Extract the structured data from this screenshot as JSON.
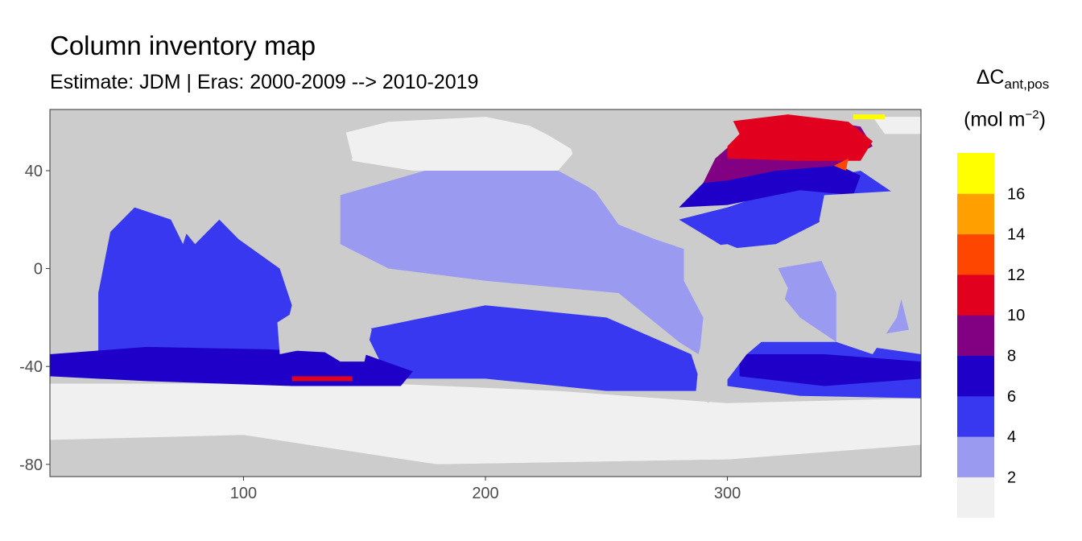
{
  "chart_data": {
    "type": "heatmap",
    "title": "Column inventory map",
    "subtitle": "Estimate: JDM  | Eras: 2000-2009 --> 2010-2019",
    "xlim": [
      20,
      380
    ],
    "ylim": [
      -85,
      65
    ],
    "x_ticks": [
      100,
      200,
      300
    ],
    "y_ticks": [
      40,
      0,
      -40,
      -80
    ],
    "grid": false,
    "land_color": "#cccccc",
    "legend": {
      "title_main": "ΔC",
      "title_sub": "ant,pos",
      "unit_prefix": "(mol m",
      "unit_sup": "−2",
      "unit_suffix": ")",
      "placement": "right",
      "bins": [
        {
          "color": "#f0f0f0"
        },
        {
          "color": "#9a9af0"
        },
        {
          "color": "#3838f0"
        },
        {
          "color": "#1e00c8"
        },
        {
          "color": "#820082"
        },
        {
          "color": "#e1001e"
        },
        {
          "color": "#ff4600"
        },
        {
          "color": "#ffa000"
        },
        {
          "color": "#ffff00"
        }
      ],
      "labels": [
        "2",
        "4",
        "6",
        "8",
        "10",
        "12",
        "14",
        "16"
      ]
    },
    "regions": [
      {
        "name": "southern-ice",
        "bin": 0,
        "polygon": [
          [
            20,
            -47
          ],
          [
            160,
            -47
          ],
          [
            230,
            -50
          ],
          [
            300,
            -55
          ],
          [
            380,
            -53
          ],
          [
            380,
            -80
          ],
          [
            300,
            -78
          ],
          [
            180,
            -80
          ],
          [
            100,
            -70
          ],
          [
            20,
            -70
          ]
        ]
      },
      {
        "name": "north-pacific",
        "bin": 0,
        "polygon": [
          [
            140,
            55
          ],
          [
            160,
            60
          ],
          [
            200,
            62
          ],
          [
            220,
            58
          ],
          [
            237,
            48
          ],
          [
            230,
            40
          ],
          [
            210,
            40
          ],
          [
            170,
            40
          ],
          [
            145,
            44
          ]
        ]
      },
      {
        "name": "arctic-sea",
        "bin": 0,
        "polygon": [
          [
            360,
            62
          ],
          [
            380,
            62
          ],
          [
            380,
            55
          ],
          [
            365,
            55
          ]
        ]
      },
      {
        "name": "pacific-central",
        "bin": 1,
        "polygon": [
          [
            140,
            30
          ],
          [
            175,
            40
          ],
          [
            230,
            40
          ],
          [
            245,
            32
          ],
          [
            255,
            18
          ],
          [
            270,
            12
          ],
          [
            282,
            8
          ],
          [
            290,
            -5
          ],
          [
            292,
            -20
          ],
          [
            288,
            -35
          ],
          [
            280,
            -30
          ],
          [
            255,
            -10
          ],
          [
            200,
            -5
          ],
          [
            160,
            0
          ],
          [
            140,
            10
          ]
        ]
      },
      {
        "name": "south-atlantic-light",
        "bin": 1,
        "polygon": [
          [
            320,
            0
          ],
          [
            350,
            5
          ],
          [
            370,
            -5
          ],
          [
            375,
            -25
          ],
          [
            345,
            -30
          ],
          [
            330,
            -20
          ],
          [
            320,
            -8
          ]
        ]
      },
      {
        "name": "indian-ocean",
        "bin": 2,
        "polygon": [
          [
            40,
            -10
          ],
          [
            45,
            15
          ],
          [
            55,
            25
          ],
          [
            70,
            22
          ],
          [
            80,
            10
          ],
          [
            90,
            20
          ],
          [
            98,
            12
          ],
          [
            115,
            0
          ],
          [
            120,
            -15
          ],
          [
            115,
            -35
          ],
          [
            40,
            -35
          ]
        ]
      },
      {
        "name": "south-pacific",
        "bin": 2,
        "polygon": [
          [
            150,
            -25
          ],
          [
            200,
            -15
          ],
          [
            250,
            -20
          ],
          [
            285,
            -35
          ],
          [
            290,
            -50
          ],
          [
            250,
            -50
          ],
          [
            200,
            -45
          ],
          [
            160,
            -45
          ]
        ]
      },
      {
        "name": "north-atlantic-outer",
        "bin": 2,
        "polygon": [
          [
            280,
            20
          ],
          [
            300,
            25
          ],
          [
            330,
            35
          ],
          [
            355,
            40
          ],
          [
            370,
            30
          ],
          [
            340,
            20
          ],
          [
            320,
            10
          ],
          [
            300,
            8
          ]
        ]
      },
      {
        "name": "south-atlantic",
        "bin": 2,
        "polygon": [
          [
            300,
            -30
          ],
          [
            345,
            -30
          ],
          [
            380,
            -35
          ],
          [
            380,
            -53
          ],
          [
            330,
            -52
          ],
          [
            300,
            -48
          ]
        ]
      },
      {
        "name": "southern-ocean-band",
        "bin": 3,
        "polygon": [
          [
            20,
            -35
          ],
          [
            60,
            -32
          ],
          [
            110,
            -33
          ],
          [
            150,
            -35
          ],
          [
            170,
            -42
          ],
          [
            165,
            -48
          ],
          [
            120,
            -48
          ],
          [
            60,
            -46
          ],
          [
            20,
            -44
          ]
        ]
      },
      {
        "name": "south-atlantic-band",
        "bin": 3,
        "polygon": [
          [
            305,
            -35
          ],
          [
            340,
            -35
          ],
          [
            380,
            -38
          ],
          [
            380,
            -45
          ],
          [
            340,
            -48
          ],
          [
            305,
            -44
          ]
        ]
      },
      {
        "name": "north-atlantic-mid",
        "bin": 3,
        "polygon": [
          [
            280,
            25
          ],
          [
            290,
            35
          ],
          [
            310,
            43
          ],
          [
            340,
            45
          ],
          [
            355,
            38
          ],
          [
            352,
            30
          ],
          [
            330,
            32
          ],
          [
            300,
            26
          ]
        ]
      },
      {
        "name": "north-atlantic-core",
        "bin": 4,
        "polygon": [
          [
            290,
            35
          ],
          [
            295,
            45
          ],
          [
            310,
            58
          ],
          [
            330,
            62
          ],
          [
            355,
            58
          ],
          [
            360,
            50
          ],
          [
            345,
            42
          ],
          [
            320,
            40
          ],
          [
            300,
            36
          ]
        ]
      },
      {
        "name": "north-atlantic-high",
        "bin": 5,
        "polygon": [
          [
            300,
            45
          ],
          [
            300,
            60
          ],
          [
            325,
            63
          ],
          [
            350,
            60
          ],
          [
            360,
            52
          ],
          [
            355,
            44
          ],
          [
            330,
            44
          ]
        ]
      },
      {
        "name": "tasman-red",
        "bin": 5,
        "polygon": [
          [
            120,
            -44
          ],
          [
            145,
            -44
          ],
          [
            145,
            -46
          ],
          [
            120,
            -46
          ]
        ]
      },
      {
        "name": "north-atlantic-orange",
        "bin": 6,
        "polygon": [
          [
            344,
            42
          ],
          [
            350,
            45
          ],
          [
            349,
            40
          ]
        ]
      },
      {
        "name": "arctic-yellow",
        "bin": 8,
        "polygon": [
          [
            352,
            63
          ],
          [
            365,
            63
          ],
          [
            365,
            61
          ],
          [
            352,
            61
          ]
        ]
      }
    ],
    "land": [
      {
        "name": "north-america",
        "polygon": [
          [
            190,
            65
          ],
          [
            300,
            65
          ],
          [
            305,
            55
          ],
          [
            295,
            45
          ],
          [
            283,
            35
          ],
          [
            278,
            27
          ],
          [
            270,
            20
          ],
          [
            262,
            18
          ],
          [
            255,
            25
          ],
          [
            240,
            35
          ],
          [
            235,
            50
          ],
          [
            215,
            60
          ]
        ]
      },
      {
        "name": "south-america",
        "polygon": [
          [
            282,
            8
          ],
          [
            300,
            10
          ],
          [
            320,
            2
          ],
          [
            325,
            -8
          ],
          [
            320,
            -25
          ],
          [
            308,
            -35
          ],
          [
            298,
            -48
          ],
          [
            292,
            -55
          ],
          [
            287,
            -50
          ],
          [
            290,
            -20
          ],
          [
            282,
            -5
          ]
        ]
      },
      {
        "name": "africa",
        "polygon": [
          [
            340,
            30
          ],
          [
            375,
            32
          ],
          [
            380,
            15
          ],
          [
            375,
            0
          ],
          [
            370,
            -20
          ],
          [
            360,
            -35
          ],
          [
            345,
            -30
          ],
          [
            345,
            -10
          ],
          [
            338,
            5
          ],
          [
            338,
            20
          ]
        ]
      },
      {
        "name": "eurasia",
        "polygon": [
          [
            20,
            65
          ],
          [
            140,
            65
          ],
          [
            145,
            45
          ],
          [
            130,
            35
          ],
          [
            120,
            22
          ],
          [
            110,
            15
          ],
          [
            100,
            15
          ],
          [
            95,
            25
          ],
          [
            80,
            25
          ],
          [
            75,
            10
          ],
          [
            70,
            20
          ],
          [
            55,
            25
          ],
          [
            40,
            20
          ],
          [
            20,
            35
          ]
        ]
      },
      {
        "name": "australia",
        "polygon": [
          [
            114,
            -22
          ],
          [
            130,
            -12
          ],
          [
            145,
            -12
          ],
          [
            153,
            -25
          ],
          [
            150,
            -38
          ],
          [
            140,
            -38
          ],
          [
            130,
            -32
          ],
          [
            115,
            -35
          ]
        ]
      },
      {
        "name": "antarctica",
        "polygon": [
          [
            20,
            -70
          ],
          [
            100,
            -68
          ],
          [
            180,
            -80
          ],
          [
            300,
            -78
          ],
          [
            380,
            -72
          ],
          [
            380,
            -85
          ],
          [
            20,
            -85
          ]
        ]
      }
    ]
  }
}
